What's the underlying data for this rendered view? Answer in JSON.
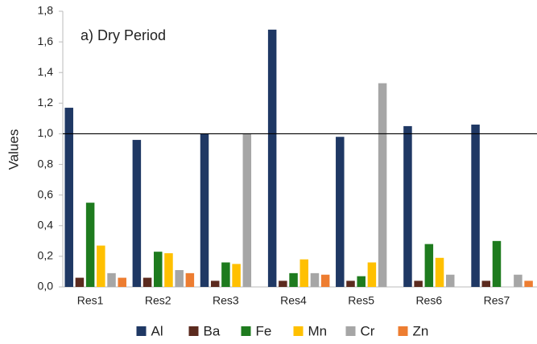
{
  "chart_data": {
    "type": "bar",
    "annotation": "a) Dry Period",
    "y_label": "Values",
    "categories": [
      "Res1",
      "Res2",
      "Res3",
      "Res4",
      "Res5",
      "Res6",
      "Res7"
    ],
    "series": [
      {
        "name": "Al",
        "color": "#1f3864",
        "values": [
          1.17,
          0.96,
          1.0,
          1.68,
          0.98,
          1.05,
          1.06
        ]
      },
      {
        "name": "Ba",
        "color": "#5b2a1e",
        "values": [
          0.06,
          0.06,
          0.04,
          0.04,
          0.04,
          0.04,
          0.04
        ]
      },
      {
        "name": "Fe",
        "color": "#1e7b1e",
        "values": [
          0.55,
          0.23,
          0.16,
          0.09,
          0.07,
          0.28,
          0.3
        ]
      },
      {
        "name": "Mn",
        "color": "#ffc000",
        "values": [
          0.27,
          0.22,
          0.15,
          0.18,
          0.16,
          0.19,
          null
        ]
      },
      {
        "name": "Cr",
        "color": "#a6a6a6",
        "values": [
          0.09,
          0.11,
          1.0,
          0.09,
          1.33,
          0.08,
          0.08
        ]
      },
      {
        "name": "Zn",
        "color": "#ed7d31",
        "values": [
          0.06,
          0.09,
          null,
          0.08,
          null,
          null,
          0.04
        ]
      }
    ],
    "hline": 1.0,
    "ylim": [
      0,
      1.8
    ],
    "yticks": [
      {
        "value": 0,
        "label": "0,0"
      },
      {
        "value": 0.2,
        "label": "0,2"
      },
      {
        "value": 0.4,
        "label": "0,4"
      },
      {
        "value": 0.6,
        "label": "0,6"
      },
      {
        "value": 0.8,
        "label": "0,8"
      },
      {
        "value": 1.0,
        "label": "1,0"
      },
      {
        "value": 1.2,
        "label": "1,2"
      },
      {
        "value": 1.4,
        "label": "1,4"
      },
      {
        "value": 1.6,
        "label": "1,6"
      },
      {
        "value": 1.8,
        "label": "1,8"
      }
    ],
    "grid": false,
    "legend": "bottom"
  }
}
